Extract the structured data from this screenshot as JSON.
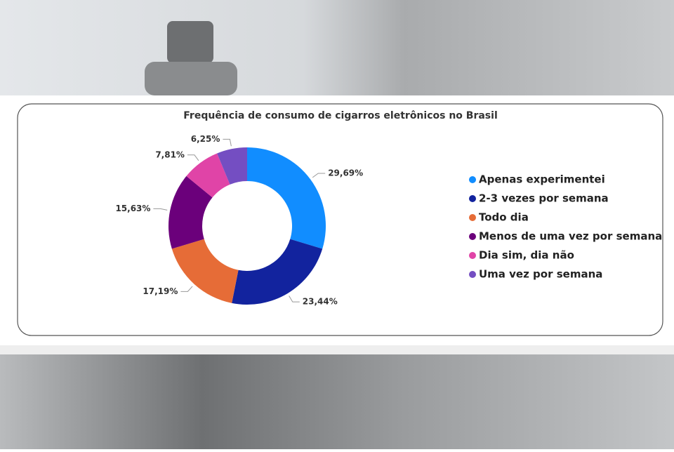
{
  "chart_data": {
    "type": "donut",
    "title": "Frequência de consumo de cigarros eletrônicos no Brasil",
    "categories": [
      "Apenas experimentei",
      "2-3 vezes por semana",
      "Todo dia",
      "Menos de uma vez por semana",
      "Dia sim, dia não",
      "Uma vez por semana"
    ],
    "values": [
      29.69,
      23.44,
      17.19,
      15.63,
      7.81,
      6.25
    ],
    "value_labels": [
      "29,69%",
      "23,44%",
      "17,19%",
      "15,63%",
      "7,81%",
      "6,25%"
    ],
    "colors": [
      "#118DFF",
      "#12239E",
      "#E66C37",
      "#6B007B",
      "#E044A7",
      "#744EC2"
    ],
    "legend": "right"
  }
}
